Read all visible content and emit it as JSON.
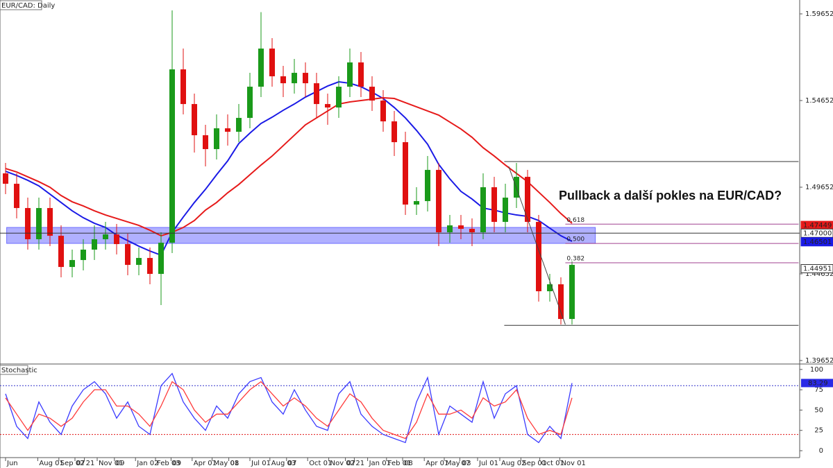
{
  "chart_data": [
    {
      "type": "candlestick",
      "title": "EUR/CAD: Daily",
      "annotation": "Pullback a další pokles na EUR/CAD?",
      "up_color": "#1a9a1a",
      "down_color": "#e01010",
      "open": [
        1.5045,
        1.4985,
        1.4845,
        1.4665,
        1.4845,
        1.4685,
        1.4505,
        1.4545,
        1.4605,
        1.4665,
        1.4693,
        1.4637,
        1.4517,
        1.4557,
        1.4465,
        1.4645,
        1.5645,
        1.5445,
        1.5265,
        1.5185,
        1.5305,
        1.5285,
        1.5365,
        1.5545,
        1.5765,
        1.5605,
        1.5565,
        1.5625,
        1.5565,
        1.5445,
        1.5425,
        1.5545,
        1.5685,
        1.5545,
        1.5465,
        1.5345,
        1.5225,
        1.4865,
        1.4885,
        1.5065,
        1.4705,
        1.4745,
        1.4725,
        1.4705,
        1.4965,
        1.4765,
        1.4905,
        1.5025,
        1.4765,
        1.4365,
        1.4405,
        1.4205
      ],
      "high": [
        1.5105,
        1.5045,
        1.4905,
        1.4905,
        1.4905,
        1.4745,
        1.4605,
        1.4665,
        1.4745,
        1.4765,
        1.4753,
        1.4697,
        1.4617,
        1.4617,
        1.4705,
        1.5985,
        1.5765,
        1.5505,
        1.5325,
        1.5385,
        1.5385,
        1.5445,
        1.5625,
        1.5975,
        1.5825,
        1.5665,
        1.5705,
        1.5685,
        1.5625,
        1.5505,
        1.5605,
        1.5765,
        1.5745,
        1.5605,
        1.5525,
        1.5405,
        1.5285,
        1.4965,
        1.5145,
        1.5105,
        1.4805,
        1.4805,
        1.4785,
        1.5045,
        1.5025,
        1.4985,
        1.5105,
        1.5065,
        1.4805,
        1.4465,
        1.4445,
        1.4537
      ],
      "low": [
        1.4925,
        1.4785,
        1.4605,
        1.4605,
        1.4625,
        1.4445,
        1.4445,
        1.4485,
        1.4545,
        1.4605,
        1.4577,
        1.4457,
        1.4457,
        1.4405,
        1.4285,
        1.4585,
        1.5385,
        1.5165,
        1.5085,
        1.5125,
        1.5205,
        1.5225,
        1.5305,
        1.5485,
        1.5545,
        1.5485,
        1.5505,
        1.5485,
        1.5365,
        1.5325,
        1.5365,
        1.5485,
        1.5485,
        1.5405,
        1.5285,
        1.5145,
        1.4805,
        1.4805,
        1.4825,
        1.4625,
        1.4645,
        1.4665,
        1.4625,
        1.4665,
        1.4705,
        1.4705,
        1.4845,
        1.4705,
        1.4305,
        1.4305,
        1.4173,
        1.4173
      ],
      "close": [
        1.4985,
        1.4845,
        1.4665,
        1.4845,
        1.4685,
        1.4505,
        1.4545,
        1.4605,
        1.4665,
        1.4693,
        1.4637,
        1.4517,
        1.4557,
        1.4465,
        1.4645,
        1.5645,
        1.5445,
        1.5265,
        1.5185,
        1.5305,
        1.5285,
        1.5365,
        1.5545,
        1.5765,
        1.5605,
        1.5565,
        1.5625,
        1.5565,
        1.5445,
        1.5425,
        1.5545,
        1.5685,
        1.5545,
        1.5465,
        1.5345,
        1.5225,
        1.4865,
        1.4885,
        1.5065,
        1.4705,
        1.4745,
        1.4725,
        1.4705,
        1.4965,
        1.4765,
        1.4905,
        1.5025,
        1.4765,
        1.4365,
        1.4405,
        1.4205,
        1.4517
      ],
      "moving_averages": [
        {
          "color": "#1a1ae6",
          "values": [
            1.5057,
            1.5033,
            1.5005,
            1.4973,
            1.4925,
            1.4877,
            1.4829,
            1.4789,
            1.4757,
            1.4733,
            1.4689,
            1.4657,
            1.4625,
            1.4597,
            1.4573,
            1.4705,
            1.4793,
            1.4877,
            1.4953,
            1.5037,
            1.5117,
            1.5217,
            1.5277,
            1.5333,
            1.5369,
            1.5409,
            1.5445,
            1.5485,
            1.5517,
            1.5549,
            1.5573,
            1.5565,
            1.5545,
            1.5513,
            1.5477,
            1.5425,
            1.5365,
            1.5293,
            1.5213,
            1.5097,
            1.5013,
            1.4941,
            1.4897,
            1.4845,
            1.4833,
            1.4817,
            1.4805,
            1.4797,
            1.4773,
            1.4729,
            1.4685,
            1.4653
          ]
        },
        {
          "color": "#e61a1a",
          "values": [
            1.5073,
            1.5053,
            1.5025,
            1.4997,
            1.4965,
            1.4917,
            1.4881,
            1.4857,
            1.4829,
            1.4805,
            1.4785,
            1.4765,
            1.4745,
            1.4717,
            1.4685,
            1.4705,
            1.4733,
            1.4773,
            1.4833,
            1.4877,
            1.4933,
            1.4981,
            1.5037,
            1.5093,
            1.5145,
            1.5205,
            1.5265,
            1.5325,
            1.5365,
            1.5405,
            1.5445,
            1.5457,
            1.5465,
            1.5473,
            1.5481,
            1.5477,
            1.5453,
            1.5429,
            1.5405,
            1.5381,
            1.5341,
            1.5301,
            1.5253,
            1.5193,
            1.5145,
            1.5093,
            1.5045,
            1.4997,
            1.4937,
            1.4877,
            1.4813,
            1.4757
          ]
        }
      ],
      "xlim": [
        0,
        72
      ],
      "xticks": [
        {
          "value": 0.5,
          "label": "Jun"
        },
        {
          "value": 3.4,
          "label": "Aug 01"
        },
        {
          "value": 5.3,
          "label": "Sep 02"
        },
        {
          "value": 6.75,
          "label": "07"
        },
        {
          "value": 7.6,
          "label": "21"
        },
        {
          "value": 8.75,
          "label": "Nov 01"
        },
        {
          "value": 10.3,
          "label": "09"
        },
        {
          "value": 12.2,
          "label": "Jan 02"
        },
        {
          "value": 14,
          "label": "Feb 03"
        },
        {
          "value": 15.4,
          "label": "09"
        },
        {
          "value": 17.3,
          "label": "Apr 01"
        },
        {
          "value": 19.1,
          "label": "May 01"
        },
        {
          "value": 20.6,
          "label": "08"
        },
        {
          "value": 22.5,
          "label": "Jul 01"
        },
        {
          "value": 24.3,
          "label": "Aug 03"
        },
        {
          "value": 25.8,
          "label": "07"
        },
        {
          "value": 27.7,
          "label": "Oct 01"
        },
        {
          "value": 29.6,
          "label": "Nov 02"
        },
        {
          "value": 31.1,
          "label": "07"
        },
        {
          "value": 31.9,
          "label": "21"
        },
        {
          "value": 33.1,
          "label": "Jan 01"
        },
        {
          "value": 34.8,
          "label": "Feb 01"
        },
        {
          "value": 36.25,
          "label": "08"
        },
        {
          "value": 38.2,
          "label": "Apr 01"
        },
        {
          "value": 40,
          "label": "May 03"
        },
        {
          "value": 41.4,
          "label": "07"
        },
        {
          "value": 43,
          "label": "Jul 01"
        },
        {
          "value": 45,
          "label": "Aug 02"
        },
        {
          "value": 46.9,
          "label": "Sep 01"
        },
        {
          "value": 48.6,
          "label": "Oct 01"
        },
        {
          "value": 50.4,
          "label": "Nov 01"
        }
      ],
      "ylim": [
        1.39452,
        1.60452
      ],
      "yticks": [
        1.39652,
        1.44652,
        1.49652,
        1.54652,
        1.59652
      ],
      "zone": {
        "xlim": [
          0.6,
          53.6
        ],
        "ylim": [
          1.4641,
          1.4733
        ],
        "color": "#6f6fff"
      },
      "hline": {
        "value": 1.47,
        "color": "#333333"
      },
      "trendline": {
        "x": [
          45.8,
          50.9
        ],
        "y": [
          1.5085,
          1.4173
        ],
        "color": "#444444"
      },
      "fib": {
        "x": [
          45.4,
          71.9
        ],
        "levels_x": [
          50.9,
          71.9
        ],
        "high": 1.5113,
        "low": 1.4168,
        "color": "#a0408f",
        "levels": [
          0.618,
          {
            "value": 0.5,
            "label": "0.500"
          },
          0.382
        ]
      },
      "price_labels": [
        {
          "value": 1.47449,
          "label": "1.47449",
          "color": "#e61a1a",
          "text_color": "#ffffff"
        },
        {
          "value": 1.47,
          "label": "1.47000",
          "color": "#ffffff",
          "text_color": "#000000"
        },
        {
          "value": 1.46501,
          "label": "1.46501",
          "color": "#1a1ae6",
          "text_color": "#ffffff"
        },
        {
          "value": 1.44951,
          "label": "1.44951",
          "color": "#ffffff",
          "text_color": "#000000"
        }
      ]
    },
    {
      "type": "line",
      "title": "Stochastic",
      "ylim": [
        -8.5,
        105
      ],
      "yticks": [
        0,
        25,
        50,
        75,
        100
      ],
      "levels": [
        {
          "value": 80,
          "color": "#3333cc"
        },
        {
          "value": 20,
          "color": "#e01010"
        }
      ],
      "series": [
        {
          "color": "#3a3aff",
          "values": [
            70,
            30,
            15,
            60,
            35,
            20,
            55,
            75,
            85,
            70,
            40,
            60,
            30,
            20,
            80,
            95,
            60,
            40,
            25,
            55,
            40,
            70,
            85,
            90,
            60,
            45,
            75,
            50,
            30,
            25,
            70,
            85,
            45,
            30,
            20,
            15,
            10,
            60,
            90,
            20,
            55,
            45,
            35,
            85,
            40,
            70,
            80,
            20,
            10,
            30,
            15,
            83.29
          ]
        },
        {
          "color": "#ff3a3a",
          "values": [
            65,
            45,
            25,
            45,
            40,
            30,
            40,
            60,
            75,
            75,
            55,
            55,
            45,
            30,
            55,
            85,
            75,
            50,
            35,
            45,
            45,
            60,
            75,
            85,
            70,
            55,
            65,
            55,
            40,
            30,
            50,
            70,
            60,
            40,
            25,
            20,
            15,
            35,
            70,
            45,
            45,
            50,
            40,
            65,
            55,
            60,
            75,
            40,
            20,
            25,
            20,
            65
          ]
        }
      ],
      "current": {
        "value": 83.29,
        "color": "#2a2ae6"
      }
    }
  ]
}
